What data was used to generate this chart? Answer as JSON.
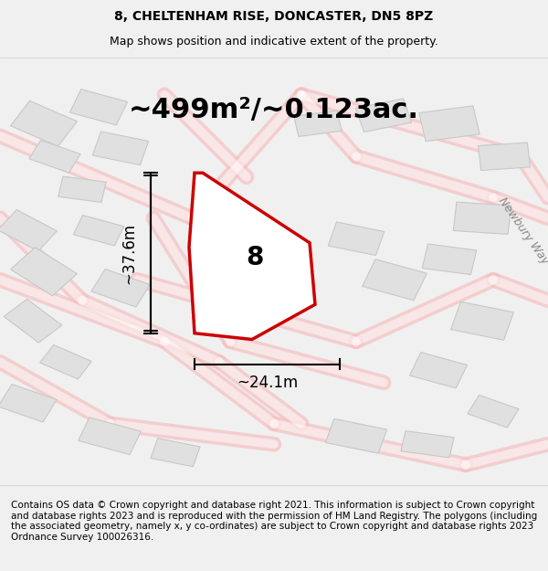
{
  "title_line1": "8, CHELTENHAM RISE, DONCASTER, DN5 8PZ",
  "title_line2": "Map shows position and indicative extent of the property.",
  "area_text": "~499m²/~0.123ac.",
  "property_label": "8",
  "width_label": "~24.1m",
  "height_label": "~37.6m",
  "street_label": "Newbury Way",
  "footer_text": "Contains OS data © Crown copyright and database right 2021. This information is subject to Crown copyright and database rights 2023 and is reproduced with the permission of HM Land Registry. The polygons (including the associated geometry, namely x, y co-ordinates) are subject to Crown copyright and database rights 2023 Ordnance Survey 100026316.",
  "bg_color": "#f5f5f5",
  "map_bg": "#ffffff",
  "road_color": "#f5c0c0",
  "building_color": "#e0e0e0",
  "property_color": "#ffffff",
  "plot_outline_color": "#cc0000",
  "dim_line_color": "#000000",
  "title_fontsize": 10,
  "area_fontsize": 22,
  "label_fontsize": 16,
  "footer_fontsize": 7.5
}
